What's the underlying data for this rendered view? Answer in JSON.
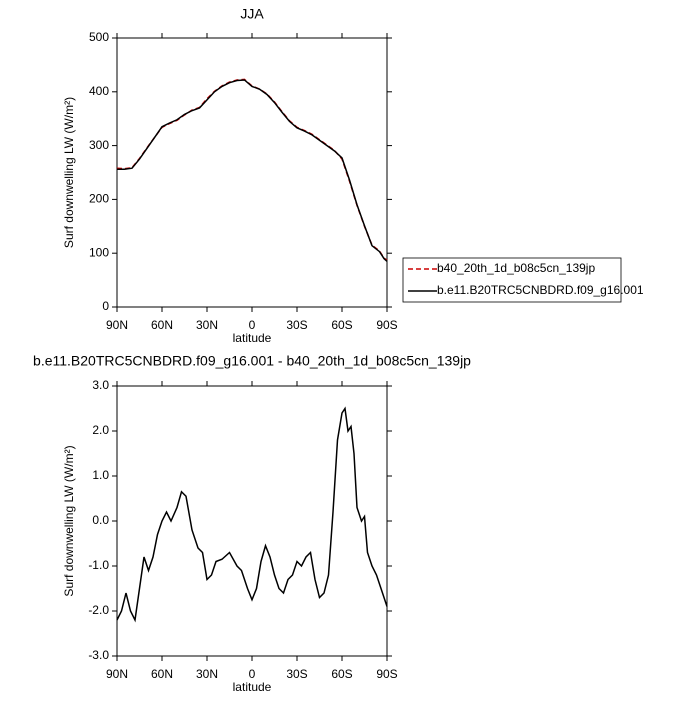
{
  "chart_data": [
    {
      "type": "line",
      "title": "JJA",
      "xlabel": "latitude",
      "ylabel": "Surf downwelling LW (W/m²)",
      "x": [
        90,
        85,
        80,
        75,
        70,
        65,
        60,
        55,
        50,
        45,
        40,
        35,
        30,
        25,
        20,
        15,
        10,
        5,
        0,
        -5,
        -10,
        -15,
        -20,
        -25,
        -30,
        -35,
        -40,
        -45,
        -50,
        -55,
        -60,
        -65,
        -70,
        -75,
        -80,
        -85,
        -88,
        -90
      ],
      "series": [
        {
          "name": "b40_20th_1d_b08c5cn_139jp",
          "color": "#cc0000",
          "dash": true,
          "values": [
            258,
            257,
            259,
            276,
            296,
            315,
            334,
            341,
            347,
            357,
            366,
            371,
            387,
            401,
            411,
            418,
            422,
            423,
            411,
            405,
            396,
            381,
            363,
            346,
            334,
            328,
            321,
            311,
            301,
            291,
            275,
            234,
            189,
            150,
            115,
            104,
            91,
            87
          ]
        },
        {
          "name": "b.e11.B20TRC5CNBDRD.f09_g16.001",
          "color": "#000000",
          "dash": false,
          "values": [
            256,
            256,
            258,
            275,
            295,
            315,
            335,
            342,
            348,
            358,
            365,
            370,
            385,
            400,
            410,
            417,
            421,
            422,
            410,
            405,
            395,
            380,
            362,
            345,
            333,
            327,
            320,
            310,
            300,
            290,
            277,
            236,
            190,
            151,
            114,
            103,
            90,
            85
          ]
        }
      ],
      "xlim": [
        90,
        -90
      ],
      "xticks": [
        {
          "value": 90,
          "label": "90N"
        },
        {
          "value": 60,
          "label": "60N"
        },
        {
          "value": 30,
          "label": "30N"
        },
        0,
        {
          "value": -30,
          "label": "30S"
        },
        {
          "value": -60,
          "label": "60S"
        },
        {
          "value": -90,
          "label": "90S"
        }
      ],
      "ylim": [
        0,
        500
      ],
      "yticks": [
        0,
        100,
        200,
        300,
        400,
        500
      ],
      "legend": "outside-right"
    },
    {
      "type": "line",
      "title": "b.e11.B20TRC5CNBDRD.f09_g16.001 - b40_20th_1d_b08c5cn_139jp",
      "xlabel": "latitude",
      "ylabel": "Surf downwelling LW (W/m²)",
      "x": [
        90,
        87,
        84,
        81,
        78,
        75,
        72,
        69,
        66,
        63,
        60,
        57,
        54,
        50,
        47,
        44,
        40,
        36,
        33,
        30,
        27,
        24,
        20,
        15,
        10,
        7,
        3,
        0,
        -3,
        -6,
        -9,
        -12,
        -15,
        -18,
        -21,
        -24,
        -27,
        -30,
        -33,
        -36,
        -39,
        -42,
        -45,
        -48,
        -51,
        -54,
        -57,
        -60,
        -62,
        -64,
        -66,
        -68,
        -70,
        -73,
        -75,
        -77,
        -80,
        -83,
        -86,
        -90
      ],
      "series": [
        {
          "color": "#000000",
          "dash": false,
          "values": [
            -2.2,
            -2.0,
            -1.6,
            -2.0,
            -2.2,
            -1.5,
            -0.8,
            -1.1,
            -0.8,
            -0.3,
            0.0,
            0.2,
            0.0,
            0.3,
            0.65,
            0.55,
            -0.2,
            -0.6,
            -0.7,
            -1.3,
            -1.2,
            -0.9,
            -0.85,
            -0.7,
            -1.0,
            -1.1,
            -1.5,
            -1.75,
            -1.5,
            -0.9,
            -0.55,
            -0.8,
            -1.2,
            -1.5,
            -1.6,
            -1.3,
            -1.2,
            -0.9,
            -1.0,
            -0.8,
            -0.7,
            -1.3,
            -1.7,
            -1.6,
            -1.2,
            0.2,
            1.8,
            2.4,
            2.5,
            2.0,
            2.1,
            1.5,
            0.3,
            0.0,
            0.1,
            -0.7,
            -1.0,
            -1.2,
            -1.5,
            -1.9
          ]
        }
      ],
      "xlim": [
        90,
        -90
      ],
      "xticks": [
        {
          "value": 90,
          "label": "90N"
        },
        {
          "value": 60,
          "label": "60N"
        },
        {
          "value": 30,
          "label": "30N"
        },
        0,
        {
          "value": -30,
          "label": "30S"
        },
        {
          "value": -60,
          "label": "60S"
        },
        {
          "value": -90,
          "label": "90S"
        }
      ],
      "ylim": [
        -3,
        3
      ],
      "yticks": [
        {
          "value": -3,
          "label": "-3.0"
        },
        {
          "value": -2,
          "label": "-2.0"
        },
        {
          "value": -1,
          "label": "-1.0"
        },
        {
          "value": 0,
          "label": "0.0"
        },
        {
          "value": 1,
          "label": "1.0"
        },
        {
          "value": 2,
          "label": "2.0"
        },
        {
          "value": 3,
          "label": "3.0"
        }
      ]
    }
  ]
}
